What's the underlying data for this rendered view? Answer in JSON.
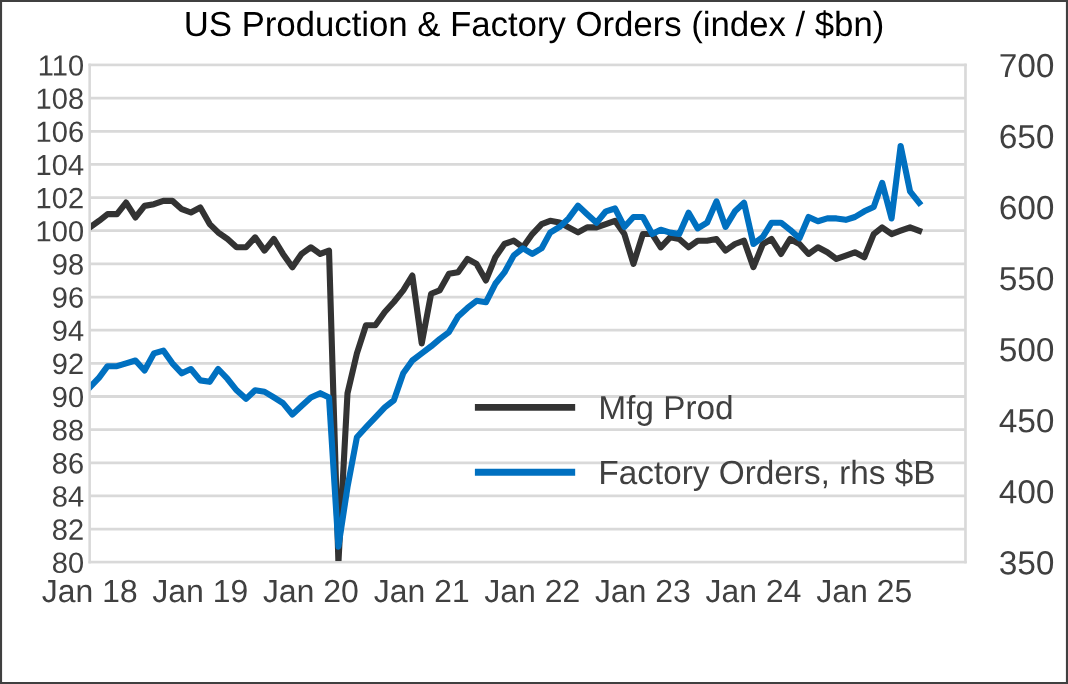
{
  "chart_data": {
    "type": "line",
    "title": "US Production & Factory Orders (index / $bn)",
    "x": [
      "2018-01",
      "2018-02",
      "2018-03",
      "2018-04",
      "2018-05",
      "2018-06",
      "2018-07",
      "2018-08",
      "2018-09",
      "2018-10",
      "2018-11",
      "2018-12",
      "2019-01",
      "2019-02",
      "2019-03",
      "2019-04",
      "2019-05",
      "2019-06",
      "2019-07",
      "2019-08",
      "2019-09",
      "2019-10",
      "2019-11",
      "2019-12",
      "2020-01",
      "2020-02",
      "2020-03",
      "2020-04",
      "2020-05",
      "2020-06",
      "2020-07",
      "2020-08",
      "2020-09",
      "2020-10",
      "2020-11",
      "2020-12",
      "2021-01",
      "2021-02",
      "2021-03",
      "2021-04",
      "2021-05",
      "2021-06",
      "2021-07",
      "2021-08",
      "2021-09",
      "2021-10",
      "2021-11",
      "2021-12",
      "2022-01",
      "2022-02",
      "2022-03",
      "2022-04",
      "2022-05",
      "2022-06",
      "2022-07",
      "2022-08",
      "2022-09",
      "2022-10",
      "2022-11",
      "2022-12",
      "2023-01",
      "2023-02",
      "2023-03",
      "2023-04",
      "2023-05",
      "2023-06",
      "2023-07",
      "2023-08",
      "2023-09",
      "2023-10",
      "2023-11",
      "2023-12",
      "2024-01",
      "2024-02",
      "2024-03",
      "2024-04",
      "2024-05",
      "2024-06",
      "2024-07",
      "2024-08",
      "2024-09",
      "2024-10",
      "2024-11",
      "2024-12",
      "2025-01",
      "2025-02",
      "2025-03",
      "2025-04",
      "2025-05",
      "2025-06",
      "2025-07"
    ],
    "series": [
      {
        "name": "Mfg Prod",
        "color": "#333333",
        "values": [
          100.2,
          100.6,
          101.0,
          101.0,
          101.7,
          100.8,
          101.5,
          101.6,
          101.8,
          101.8,
          101.3,
          101.1,
          101.4,
          100.4,
          99.9,
          99.5,
          99.0,
          99.0,
          99.6,
          98.8,
          99.5,
          98.6,
          97.8,
          98.6,
          99.0,
          98.6,
          98.8,
          80.0,
          90.2,
          92.6,
          94.3,
          94.3,
          95.1,
          95.7,
          96.4,
          97.3,
          93.2,
          96.2,
          96.4,
          97.4,
          97.5,
          98.3,
          98.0,
          97.0,
          98.4,
          99.2,
          99.4,
          99.0,
          99.8,
          100.4,
          100.6,
          100.5,
          100.2,
          99.9,
          100.2,
          100.2,
          100.4,
          100.6,
          99.8,
          98.0,
          99.8,
          99.8,
          99.0,
          99.6,
          99.5,
          99.0,
          99.4,
          99.4,
          99.5,
          98.8,
          99.2,
          99.4,
          97.8,
          99.2,
          99.5,
          98.6,
          99.5,
          99.2,
          98.6,
          99.0,
          98.7,
          98.3,
          98.5,
          98.7,
          98.4,
          99.8,
          100.2,
          99.8,
          100.0,
          100.2,
          100.0
        ]
      },
      {
        "name": "Factory Orders, rhs $B",
        "color": "#0070c0",
        "axis": "y2",
        "values": [
          473,
          480,
          488,
          488,
          490,
          492,
          485,
          497,
          499,
          490,
          483,
          486,
          478,
          477,
          486,
          479,
          471,
          465,
          471,
          470,
          466,
          462,
          454,
          460,
          466,
          469,
          466,
          361,
          403,
          438,
          445,
          452,
          459,
          464,
          483,
          492,
          497,
          502,
          507,
          512,
          523,
          529,
          534,
          533,
          546,
          554,
          566,
          571,
          567,
          571,
          582,
          586,
          592,
          601,
          595,
          589,
          597,
          599,
          586,
          593,
          593,
          581,
          584,
          582,
          581,
          596,
          585,
          589,
          604,
          586,
          597,
          603,
          574,
          579,
          589,
          589,
          584,
          578,
          593,
          590,
          592,
          592,
          591,
          593,
          597,
          600,
          617,
          592,
          643,
          611,
          603
        ]
      }
    ],
    "xlim": [
      "2018-01",
      "2025-12"
    ],
    "xticks": [
      {
        "value": "2018-01",
        "label": "Jan 18"
      },
      {
        "value": "2019-01",
        "label": "Jan 19"
      },
      {
        "value": "2020-01",
        "label": "Jan 20"
      },
      {
        "value": "2021-01",
        "label": "Jan 21"
      },
      {
        "value": "2022-01",
        "label": "Jan 22"
      },
      {
        "value": "2023-01",
        "label": "Jan 23"
      },
      {
        "value": "2024-01",
        "label": "Jan 24"
      },
      {
        "value": "2025-01",
        "label": "Jan 25"
      }
    ],
    "ylim": [
      80,
      110
    ],
    "yticks": [
      80,
      82,
      84,
      86,
      88,
      90,
      92,
      94,
      96,
      98,
      100,
      102,
      104,
      106,
      108,
      110
    ],
    "y2lim": [
      350,
      700
    ],
    "y2ticks": [
      350,
      400,
      450,
      500,
      550,
      600,
      650,
      700
    ],
    "grid": "y",
    "legend": "right",
    "marker": "none",
    "line_style": "solid"
  }
}
